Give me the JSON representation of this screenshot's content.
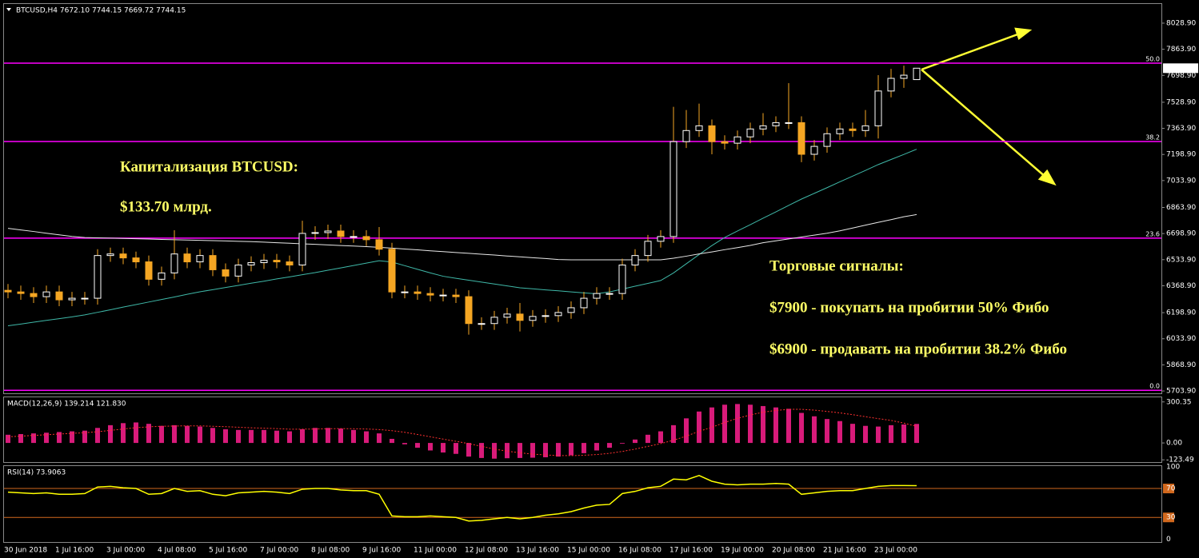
{
  "header": "BTCUSD,H4  7672.10 7744.15 7669.72 7744.15",
  "chart_data": [
    {
      "type": "candlestick",
      "x": [
        "30 Jun 2018",
        null,
        null,
        null,
        "1 Jul 16:00",
        null,
        null,
        null,
        "3 Jul 00:00",
        null,
        null,
        null,
        "4 Jul 08:00",
        null,
        null,
        null,
        "5 Jul 16:00",
        null,
        null,
        null,
        "7 Jul 00:00",
        null,
        null,
        null,
        "8 Jul 08:00",
        null,
        null,
        null,
        "9 Jul 16:00",
        null,
        null,
        null,
        "11 Jul 00:00",
        null,
        null,
        null,
        "12 Jul 08:00",
        null,
        null,
        null,
        "13 Jul 16:00",
        null,
        null,
        null,
        "15 Jul 00:00",
        null,
        null,
        null,
        "16 Jul 08:00",
        null,
        null,
        null,
        "17 Jul 16:00",
        null,
        null,
        null,
        "19 Jul 00:00",
        null,
        null,
        null,
        "20 Jul 08:00",
        null,
        null,
        null,
        "21 Jul 16:00",
        null,
        null,
        null,
        "23 Jul 00:00",
        null,
        null,
        null
      ],
      "open": [
        6340,
        6330,
        6320,
        6300,
        6330,
        6280,
        6290,
        6290,
        6560,
        6570,
        6545,
        6520,
        6410,
        6450,
        6570,
        6520,
        6560,
        6470,
        6430,
        6500,
        6515,
        6530,
        6520,
        6500,
        6700,
        6705,
        6715,
        6680,
        6680,
        6660,
        6600,
        6330,
        6330,
        6320,
        6310,
        6310,
        6300,
        6130,
        6130,
        6170,
        6190,
        6150,
        6175,
        6180,
        6200,
        6230,
        6290,
        6320,
        6320,
        6500,
        6560,
        6650,
        6680,
        7280,
        7350,
        7380,
        7280,
        7270,
        7310,
        7360,
        7380,
        7400,
        7400,
        7200,
        7250,
        7330,
        7360,
        7350,
        7380,
        7600,
        7680,
        7672.1
      ],
      "high": [
        6380,
        6370,
        6360,
        6370,
        6370,
        6330,
        6330,
        6600,
        6610,
        6610,
        6585,
        6560,
        6490,
        6720,
        6610,
        6600,
        6600,
        6510,
        6540,
        6555,
        6570,
        6570,
        6560,
        6780,
        6745,
        6755,
        6755,
        6720,
        6720,
        6740,
        6640,
        6370,
        6370,
        6360,
        6350,
        6350,
        6340,
        6170,
        6210,
        6230,
        6260,
        6215,
        6220,
        6240,
        6270,
        6330,
        6360,
        6360,
        6540,
        6600,
        6690,
        6720,
        7500,
        7480,
        7520,
        7420,
        7320,
        7350,
        7400,
        7460,
        7440,
        7650,
        7440,
        7290,
        7370,
        7400,
        7400,
        7480,
        7700,
        7740,
        7760,
        7744.15
      ],
      "low": [
        6290,
        6280,
        6260,
        6260,
        6240,
        6240,
        6250,
        6250,
        6520,
        6505,
        6480,
        6370,
        6370,
        6410,
        6480,
        6480,
        6430,
        6390,
        6390,
        6460,
        6475,
        6480,
        6460,
        6460,
        6660,
        6665,
        6640,
        6640,
        6620,
        6560,
        6290,
        6290,
        6280,
        6270,
        6270,
        6260,
        6060,
        6090,
        6090,
        6130,
        6080,
        6110,
        6135,
        6140,
        6160,
        6190,
        6250,
        6280,
        6280,
        6460,
        6520,
        6610,
        6640,
        7240,
        7310,
        7200,
        7230,
        7230,
        7270,
        7320,
        7340,
        7360,
        7150,
        7160,
        7210,
        7290,
        7310,
        7310,
        7300,
        7560,
        7620,
        7669.72
      ],
      "close": [
        6330,
        6320,
        6300,
        6330,
        6280,
        6290,
        6290,
        6560,
        6570,
        6545,
        6520,
        6410,
        6450,
        6570,
        6520,
        6560,
        6470,
        6430,
        6500,
        6515,
        6530,
        6520,
        6500,
        6700,
        6705,
        6715,
        6680,
        6680,
        6660,
        6600,
        6330,
        6330,
        6320,
        6310,
        6310,
        6300,
        6130,
        6130,
        6170,
        6190,
        6150,
        6175,
        6180,
        6200,
        6230,
        6290,
        6320,
        6320,
        6500,
        6560,
        6650,
        6680,
        7280,
        7350,
        7380,
        7280,
        7270,
        7310,
        7360,
        7380,
        7400,
        7400,
        7200,
        7250,
        7330,
        7360,
        7350,
        7380,
        7600,
        7680,
        7700,
        7744.15
      ],
      "up_color": "#ffffff",
      "down_color": "#f5a623",
      "series": [
        {
          "color": "#3fb8a8",
          "values": [
            6116,
            6127,
            6139,
            6150,
            6161,
            6172,
            6185,
            6201,
            6217,
            6234,
            6250,
            6266,
            6282,
            6298,
            6315,
            6331,
            6344,
            6358,
            6371,
            6385,
            6398,
            6412,
            6425,
            6439,
            6452,
            6467,
            6482,
            6497,
            6512,
            6527,
            6519,
            6496,
            6473,
            6450,
            6429,
            6416,
            6404,
            6392,
            6380,
            6368,
            6356,
            6350,
            6343,
            6337,
            6330,
            6324,
            6318,
            6330,
            6348,
            6366,
            6384,
            6402,
            6450,
            6508,
            6566,
            6623,
            6674,
            6715,
            6755,
            6796,
            6836,
            6877,
            6917,
            6953,
            6989,
            7026,
            7062,
            7098,
            7135,
            7167,
            7199,
            7232
          ]
        },
        {
          "color": "#e8e8e8",
          "values": [
            6732,
            6722,
            6712,
            6701,
            6691,
            6681,
            6674,
            6672,
            6670,
            6668,
            6666,
            6664,
            6662,
            6660,
            6658,
            6656,
            6654,
            6652,
            6650,
            6648,
            6645,
            6641,
            6638,
            6634,
            6631,
            6627,
            6623,
            6620,
            6616,
            6612,
            6607,
            6601,
            6596,
            6590,
            6585,
            6579,
            6574,
            6568,
            6563,
            6557,
            6552,
            6546,
            6541,
            6535,
            6533,
            6533,
            6533,
            6533,
            6533,
            6533,
            6533,
            6533,
            6543,
            6556,
            6570,
            6583,
            6597,
            6610,
            6624,
            6641,
            6653,
            6665,
            6677,
            6689,
            6701,
            6716,
            6734,
            6752,
            6770,
            6787,
            6805,
            6819
          ]
        }
      ],
      "ylim": [
        5689,
        8150
      ],
      "yticks": [
        {
          "value": 8028.9,
          "label": "8028.90"
        },
        {
          "value": 7863.9,
          "label": "7863.90"
        },
        {
          "value": 7698.9,
          "label": "7698.90"
        },
        {
          "value": 7528.9,
          "label": "7528.90"
        },
        {
          "value": 7363.9,
          "label": "7363.90"
        },
        {
          "value": 7198.9,
          "label": "7198.90"
        },
        {
          "value": 7033.9,
          "label": "7033.90"
        },
        {
          "value": 6863.9,
          "label": "6863.90"
        },
        {
          "value": 6698.9,
          "label": "6698.90"
        },
        {
          "value": 6533.9,
          "label": "6533.90"
        },
        {
          "value": 6368.9,
          "label": "6368.90"
        },
        {
          "value": 6198.9,
          "label": "6198.90"
        },
        {
          "value": 6033.9,
          "label": "6033.90"
        },
        {
          "value": 5868.9,
          "label": "5868.90"
        },
        {
          "value": 5703.9,
          "label": "5703.90"
        }
      ],
      "fibo_labels": [
        "50.0",
        "38.2",
        "23.6",
        "0.0"
      ],
      "fibo_prices": [
        7776,
        7281,
        6670,
        5708
      ],
      "fibo_color": "#ff00ff",
      "annotations": [
        "Капитализация BTCUSD:",
        "$133.70 млрд.",
        "Торговые сигналы:",
        "$7900 - покупать на пробитии 50% Фибо",
        "$6900 - продавать на пробитии 38.2% Фибо"
      ]
    },
    {
      "type": "bar",
      "title": "MACD(12,26,9) 139.214 121.830",
      "color": "#d81b7a",
      "signal_color": "#ff3030",
      "values": [
        60,
        65,
        70,
        75,
        80,
        85,
        90,
        110,
        130,
        145,
        150,
        140,
        125,
        130,
        125,
        120,
        110,
        100,
        95,
        95,
        95,
        90,
        85,
        100,
        110,
        110,
        105,
        95,
        85,
        70,
        30,
        -10,
        -35,
        -55,
        -70,
        -80,
        -100,
        -110,
        -115,
        -112,
        -110,
        -108,
        -105,
        -100,
        -90,
        -75,
        -55,
        -35,
        -5,
        25,
        60,
        85,
        130,
        180,
        230,
        260,
        280,
        285,
        280,
        270,
        260,
        250,
        220,
        195,
        175,
        160,
        140,
        125,
        120,
        130,
        135,
        139.214
      ],
      "signal": [
        45,
        50,
        55,
        60,
        65,
        70,
        75,
        82,
        92,
        102,
        112,
        118,
        122,
        124,
        125,
        125,
        122,
        119,
        115,
        111,
        108,
        105,
        101,
        101,
        102,
        104,
        105,
        104,
        102,
        98,
        90,
        78,
        62,
        45,
        28,
        12,
        -5,
        -25,
        -45,
        -60,
        -72,
        -82,
        -88,
        -92,
        -93,
        -90,
        -85,
        -76,
        -62,
        -45,
        -25,
        -5,
        20,
        50,
        85,
        115,
        150,
        180,
        205,
        225,
        238,
        246,
        246,
        240,
        231,
        220,
        207,
        192,
        178,
        165,
        145,
        121.83
      ],
      "ylim": [
        -140,
        334
      ],
      "yticks": [
        {
          "value": 300.35,
          "label": "300.35"
        },
        {
          "value": 0,
          "label": "0.00"
        },
        {
          "value": -123.49,
          "label": "-123.49"
        }
      ]
    },
    {
      "type": "line",
      "title": "RSI(14) 73.9063",
      "color": "#ffff00",
      "level_color": "#d2691e",
      "values": [
        65,
        64,
        63,
        64,
        62,
        62,
        63,
        72,
        73,
        71,
        70,
        62,
        63,
        70,
        66,
        67,
        62,
        60,
        64,
        65,
        66,
        65,
        63,
        69,
        70,
        70,
        68,
        67,
        67,
        62,
        32,
        31,
        31,
        32,
        31,
        30,
        25,
        26,
        28,
        30,
        28,
        30,
        33,
        35,
        38,
        43,
        47,
        48,
        63,
        66,
        71,
        73,
        83,
        82,
        88,
        80,
        76,
        75,
        76,
        76,
        77,
        76,
        62,
        64,
        66,
        67,
        67,
        70,
        73,
        74,
        74,
        73.9063
      ],
      "ylim": [
        -4,
        101
      ],
      "yticks": [
        100,
        70,
        30,
        0
      ],
      "levels": [
        70,
        30
      ]
    }
  ]
}
